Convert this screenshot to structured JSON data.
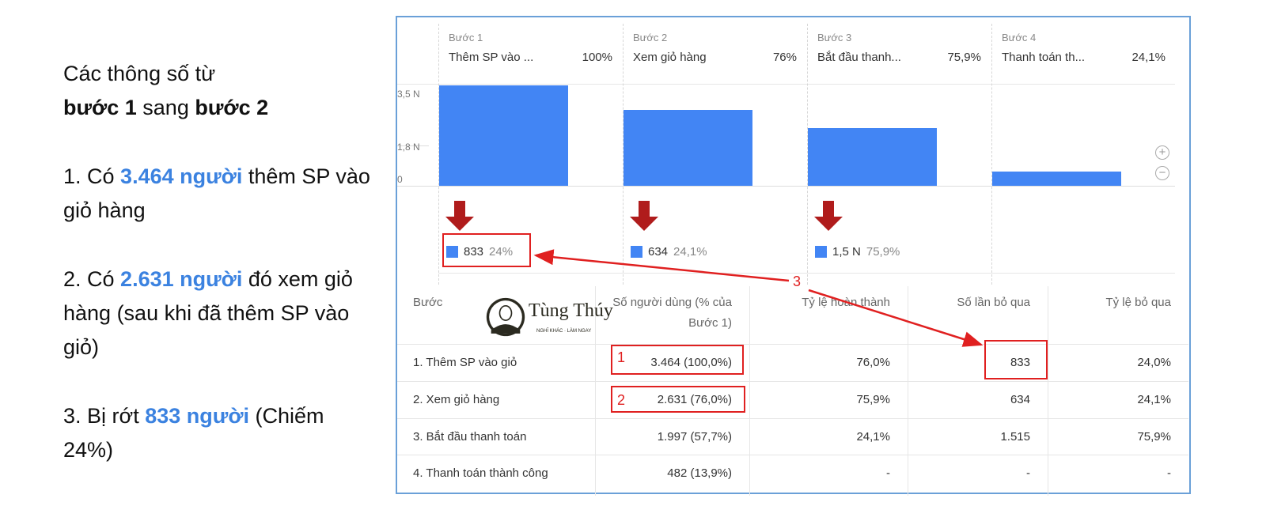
{
  "explanation": {
    "title_line1": "Các thông số từ",
    "title_b1": "bước 1",
    "title_mid": " sang ",
    "title_b2": "bước 2",
    "p1_prefix": "1. Có ",
    "p1_highlight": "3.464 người",
    "p1_suffix": " thêm SP vào giỏ hàng",
    "p2_prefix": "2. Có ",
    "p2_highlight": "2.631 người",
    "p2_suffix": " đó xem giỏ hàng (sau khi đã thêm SP vào giỏ)",
    "p3_prefix": "3. Bị rớt ",
    "p3_highlight": "833 người",
    "p3_suffix": " (Chiếm 24%)"
  },
  "colors": {
    "bar": "#4285f4",
    "highlight": "#3b82e0",
    "annotation": "#e02020",
    "drop_arrow": "#b01c1c"
  },
  "chart_data": {
    "type": "bar",
    "categories": [
      "Thêm SP vào ...",
      "Xem giỏ hàng",
      "Bắt đầu thanh...",
      "Thanh toán th..."
    ],
    "step_labels": [
      "Bước 1",
      "Bước 2",
      "Bước 3",
      "Bước 4"
    ],
    "percent_labels": [
      "100%",
      "76%",
      "75,9%",
      "24,1%"
    ],
    "values": [
      3464,
      2631,
      1997,
      482
    ],
    "y_ticks": [
      "3,5 N",
      "1,8 N",
      "0"
    ],
    "ylim": [
      0,
      3500
    ],
    "dropoffs": [
      {
        "value": "833",
        "percent": "24%"
      },
      {
        "value": "634",
        "percent": "24,1%"
      },
      {
        "value": "1,5 N",
        "percent": "75,9%"
      }
    ]
  },
  "zoom_controls": {
    "in": "+",
    "out": "−"
  },
  "table": {
    "headers": [
      "Bước",
      "Số người dùng (% của Bước 1)",
      "Tỷ lệ hoàn thành",
      "Số lần bỏ qua",
      "Tỷ lệ bỏ qua"
    ],
    "rows": [
      [
        "1. Thêm SP vào giỏ",
        "3.464 (100,0%)",
        "76,0%",
        "833",
        "24,0%"
      ],
      [
        "2. Xem giỏ hàng",
        "2.631 (76,0%)",
        "75,9%",
        "634",
        "24,1%"
      ],
      [
        "3. Bắt đầu thanh toán",
        "1.997 (57,7%)",
        "24,1%",
        "1.515",
        "75,9%"
      ],
      [
        "4. Thanh toán thành công",
        "482 (13,9%)",
        "-",
        "-",
        "-"
      ]
    ]
  },
  "annotations": {
    "n1": "1",
    "n2": "2",
    "n3": "3"
  },
  "logo": {
    "name": "Tùng Thúy",
    "tagline": "NGHĨ KHÁC · LÀM NGAY"
  }
}
